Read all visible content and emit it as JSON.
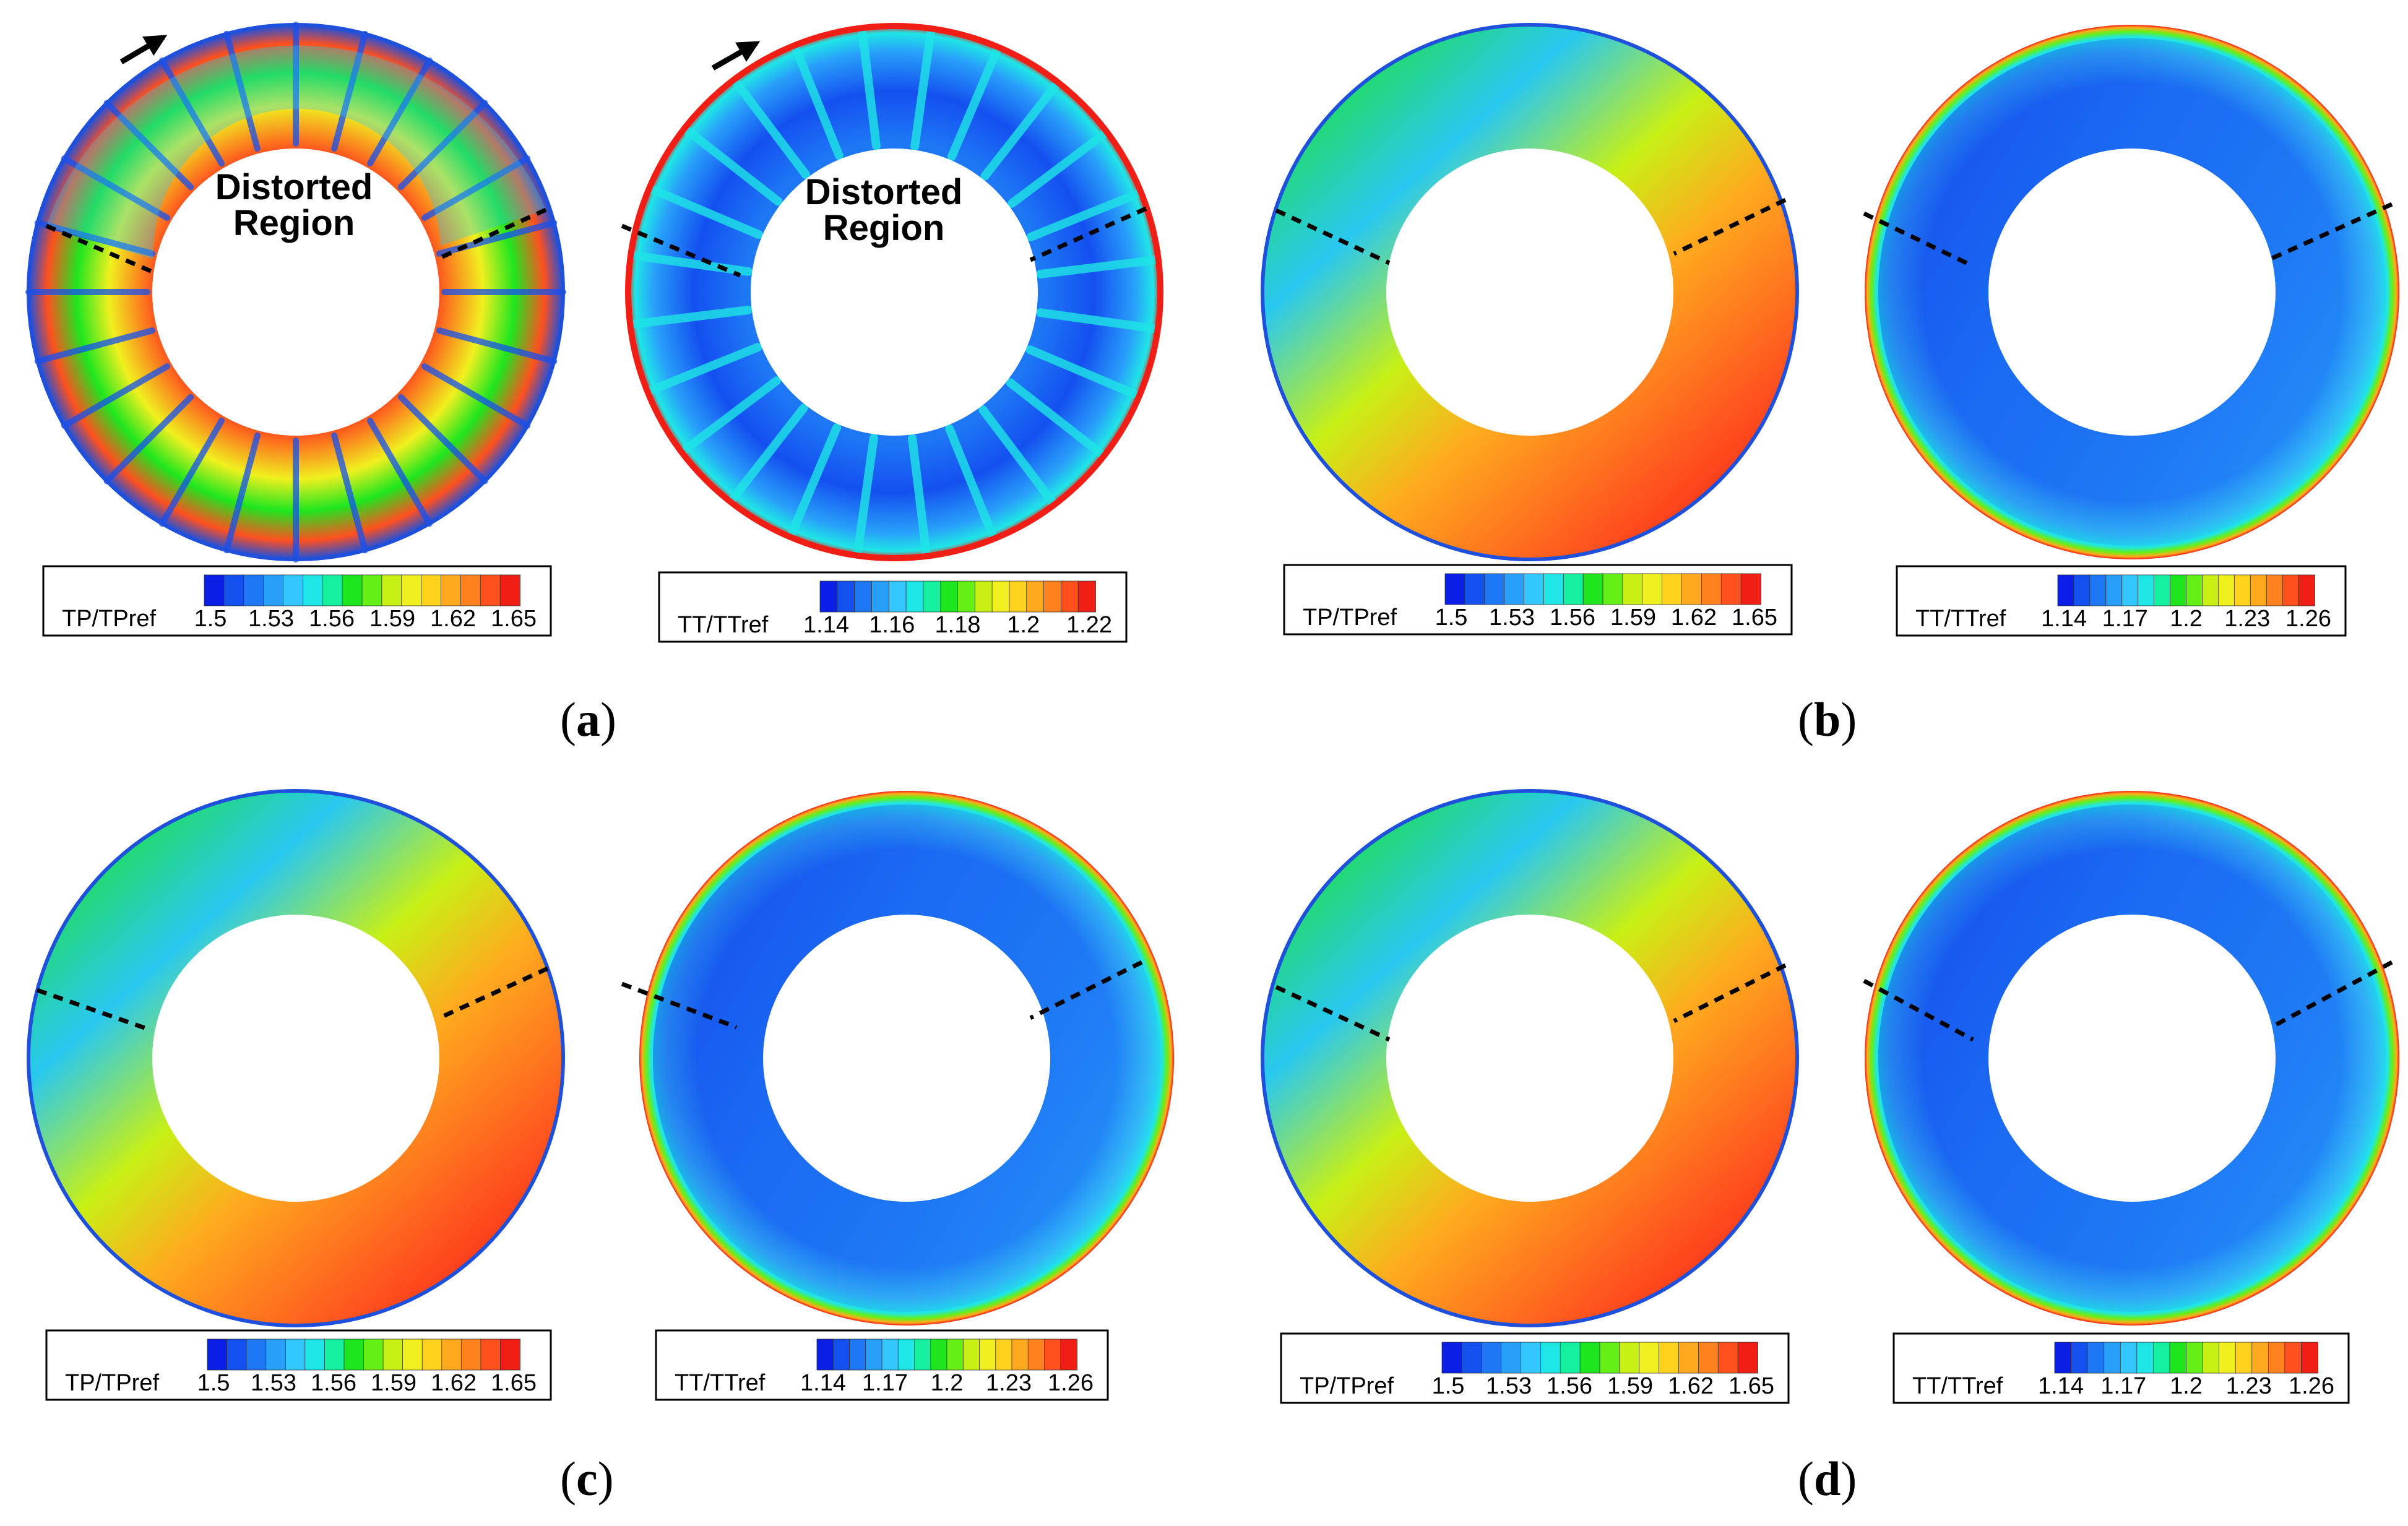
{
  "panels": [
    {
      "label": "a",
      "annotation_line1": "Distorted",
      "annotation_line2": "Region"
    },
    {
      "label": "b"
    },
    {
      "label": "c"
    },
    {
      "label": "d"
    }
  ],
  "legends": {
    "tp": {
      "title": "TP/TPref",
      "ticks": [
        "1.5",
        "1.53",
        "1.56",
        "1.59",
        "1.62",
        "1.65"
      ]
    },
    "tt_a": {
      "title": "TT/TTref",
      "ticks": [
        "1.14",
        "1.16",
        "1.18",
        "1.2",
        "1.22"
      ]
    },
    "tt": {
      "title": "TT/TTref",
      "ticks": [
        "1.14",
        "1.17",
        "1.2",
        "1.23",
        "1.26"
      ]
    }
  },
  "colormap": [
    "#0a1ee6",
    "#1450f0",
    "#1e78f5",
    "#28a0fa",
    "#32c8ff",
    "#1ee6e6",
    "#14f0a0",
    "#1ee61e",
    "#64f014",
    "#c8f014",
    "#f0f01e",
    "#ffd21e",
    "#ffaa1e",
    "#ff821e",
    "#ff501e",
    "#f01e14"
  ],
  "colors": {
    "dashed_line": "#000000",
    "frame": "#000000",
    "outer_edge_blue": "#1e50dc",
    "outer_edge_red": "#f02814"
  }
}
